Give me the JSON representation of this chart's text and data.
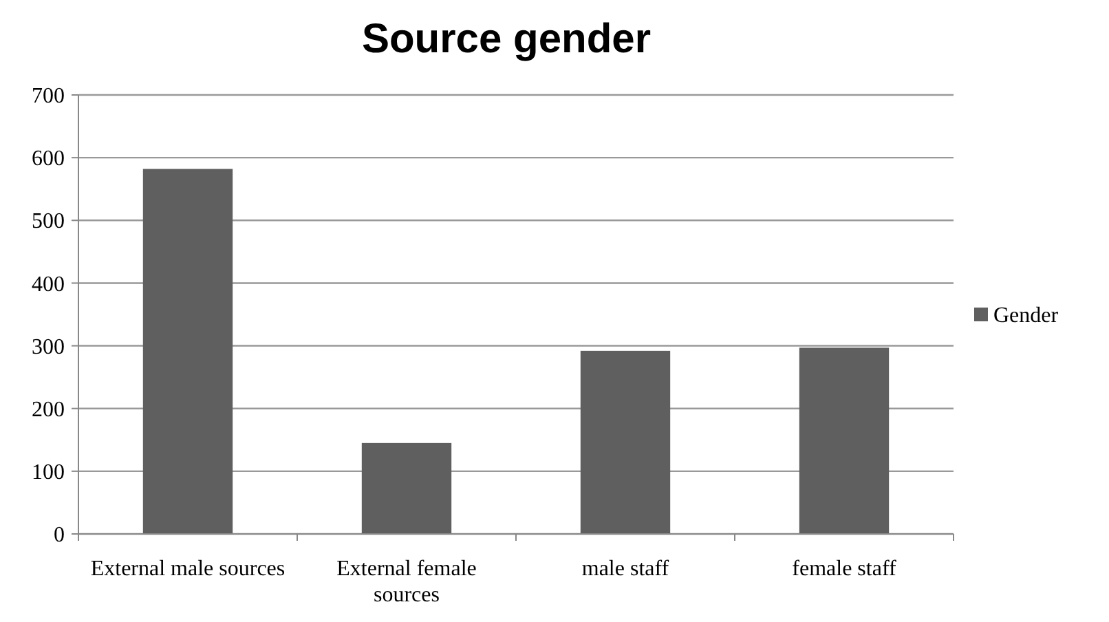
{
  "chart_data": {
    "type": "bar",
    "title": "Source gender",
    "categories": [
      "External male sources",
      "External female sources",
      "male staff",
      "female staff"
    ],
    "series": [
      {
        "name": "Gender",
        "color": "#5f5f5f",
        "values": [
          582,
          145,
          292,
          297
        ]
      }
    ],
    "ylim": [
      0,
      700
    ],
    "yticks": [
      0,
      100,
      200,
      300,
      400,
      500,
      600,
      700
    ],
    "grid": "y",
    "legend": "right"
  }
}
